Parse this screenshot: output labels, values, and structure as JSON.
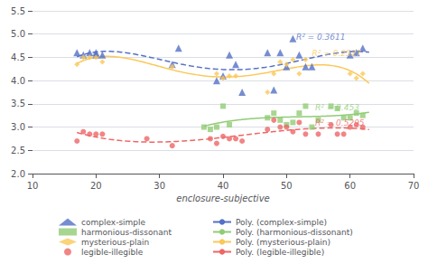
{
  "chart_data": {
    "type": "scatter",
    "xlabel": "enclosure-subjective",
    "xlim": [
      10,
      70
    ],
    "ylim": [
      2.0,
      5.5
    ],
    "xticks": [
      10,
      20,
      30,
      40,
      50,
      60,
      70
    ],
    "yticks": [
      {
        "value": 2.0,
        "label": "2.0"
      },
      {
        "value": 2.5,
        "label": "2.5"
      },
      {
        "value": 3.0,
        "label": "3.0"
      },
      {
        "value": 3.5,
        "label": "3.5"
      },
      {
        "value": 4.0,
        "label": "4.0"
      },
      {
        "value": 4.5,
        "label": "4.5"
      },
      {
        "value": 5.0,
        "label": "5.0"
      },
      {
        "value": 5.5,
        "label": "5.5"
      }
    ],
    "grid": "y",
    "legend": "bottom",
    "series": [
      {
        "name": "complex-simple",
        "type": "scatter",
        "marker": "triangle",
        "x": [
          17,
          18,
          19,
          20,
          20,
          21,
          32,
          33,
          39,
          40,
          41,
          42,
          43,
          47,
          48,
          49,
          50,
          51,
          52,
          53,
          54,
          60,
          61,
          62
        ],
        "values": [
          4.6,
          4.55,
          4.6,
          4.6,
          4.55,
          4.55,
          4.35,
          4.7,
          4.0,
          4.1,
          4.55,
          4.35,
          3.75,
          4.6,
          3.8,
          4.6,
          4.3,
          4.9,
          4.55,
          4.3,
          4.3,
          4.55,
          4.6,
          4.7
        ]
      },
      {
        "name": "harmonious-dissonant",
        "type": "scatter",
        "marker": "square",
        "x": [
          37,
          38,
          39,
          40,
          41,
          47,
          48,
          49,
          50,
          51,
          52,
          53,
          54,
          55,
          57,
          58,
          59,
          60,
          61,
          62
        ],
        "values": [
          3.0,
          2.95,
          3.0,
          3.45,
          3.05,
          3.2,
          3.3,
          3.15,
          3.05,
          3.1,
          3.3,
          3.45,
          3.0,
          3.15,
          3.45,
          3.4,
          3.2,
          3.2,
          3.3,
          3.25
        ]
      },
      {
        "name": "mysterious-plain",
        "type": "scatter",
        "marker": "diamond",
        "x": [
          17,
          18,
          19,
          20,
          21,
          32,
          39,
          40,
          41,
          42,
          47,
          48,
          49,
          50,
          51,
          52,
          53,
          60,
          61,
          62
        ],
        "values": [
          4.35,
          4.5,
          4.5,
          4.5,
          4.4,
          4.3,
          4.15,
          4.05,
          4.1,
          4.1,
          3.75,
          4.15,
          4.4,
          4.35,
          4.45,
          4.15,
          4.45,
          4.15,
          4.05,
          4.15
        ]
      },
      {
        "name": "legible-illegible",
        "type": "scatter",
        "marker": "circle",
        "x": [
          17,
          18,
          19,
          20,
          21,
          28,
          32,
          38,
          39,
          40,
          41,
          42,
          43,
          47,
          48,
          49,
          50,
          51,
          52,
          53,
          55,
          57,
          58,
          59,
          60,
          61,
          62
        ],
        "values": [
          2.7,
          2.9,
          2.85,
          2.85,
          2.85,
          2.75,
          2.6,
          2.75,
          2.65,
          2.8,
          2.75,
          2.75,
          2.7,
          2.95,
          3.15,
          3.0,
          3.0,
          2.9,
          3.1,
          2.85,
          2.85,
          3.05,
          2.85,
          2.85,
          3.0,
          3.05,
          3.0
        ]
      },
      {
        "name": "Poly. (complex-simple)",
        "type": "line",
        "line_style": "dashed",
        "fit": {
          "of": "complex-simple",
          "degree": 4,
          "x_range": [
            17,
            63
          ]
        }
      },
      {
        "name": "Poly. (harmonious-dissonant)",
        "type": "line",
        "line_style": "solid",
        "fit": {
          "of": "harmonious-dissonant",
          "degree": 3,
          "x_range": [
            37,
            63
          ]
        }
      },
      {
        "name": "Poly. (mysterious-plain)",
        "type": "line",
        "line_style": "solid",
        "fit": {
          "of": "mysterious-plain",
          "degree": 4,
          "x_range": [
            17,
            63
          ]
        }
      },
      {
        "name": "Poly. (legible-illegible)",
        "type": "line",
        "line_style": "dashed",
        "fit": {
          "of": "legible-illegible",
          "degree": 3,
          "x_range": [
            17,
            63
          ]
        }
      }
    ],
    "annotations": [
      {
        "text": "R² = 0.3611",
        "x": 51.5,
        "y": 4.93,
        "series": "complex-simple"
      },
      {
        "text": "R² = 0.2527",
        "x": 54.0,
        "y": 4.58,
        "series": "mysterious-plain"
      },
      {
        "text": "R² = 0.453",
        "x": 54.5,
        "y": 3.42,
        "series": "harmonious-dissonant"
      },
      {
        "text": "R² = 0.5295",
        "x": 54.5,
        "y": 3.08,
        "series": "legible-illegible"
      }
    ]
  }
}
